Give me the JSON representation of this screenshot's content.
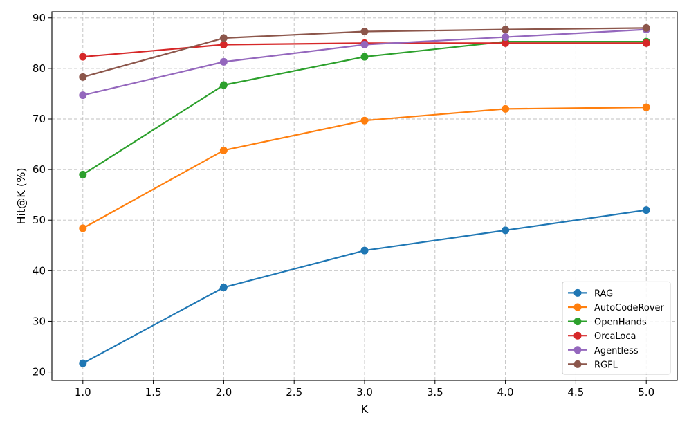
{
  "chart_data": {
    "type": "line",
    "title": "",
    "xlabel": "K",
    "ylabel": "Hit@K (%)",
    "x": [
      1.0,
      2.0,
      3.0,
      4.0,
      5.0
    ],
    "xlim": [
      0.78,
      5.22
    ],
    "ylim": [
      18.3,
      91.2
    ],
    "xticks": [
      1.0,
      1.5,
      2.0,
      2.5,
      3.0,
      3.5,
      4.0,
      4.5,
      5.0
    ],
    "xtick_labels": [
      "1.0",
      "1.5",
      "2.0",
      "2.5",
      "3.0",
      "3.5",
      "4.0",
      "4.5",
      "5.0"
    ],
    "yticks": [
      20,
      30,
      40,
      50,
      60,
      70,
      80,
      90
    ],
    "ytick_labels": [
      "20",
      "30",
      "40",
      "50",
      "60",
      "70",
      "80",
      "90"
    ],
    "grid": true,
    "legend_position": "lower-right",
    "series": [
      {
        "name": "RAG",
        "color": "#1f77b4",
        "values": [
          21.7,
          36.7,
          44.0,
          48.0,
          52.0
        ]
      },
      {
        "name": "AutoCodeRover",
        "color": "#ff7f0e",
        "values": [
          48.4,
          63.8,
          69.7,
          72.0,
          72.3
        ]
      },
      {
        "name": "OpenHands",
        "color": "#2ca02c",
        "values": [
          59.0,
          76.7,
          82.3,
          85.3,
          85.3
        ]
      },
      {
        "name": "OrcaLoca",
        "color": "#d62728",
        "values": [
          82.3,
          84.7,
          85.0,
          85.0,
          85.0
        ]
      },
      {
        "name": "Agentless",
        "color": "#9467bd",
        "values": [
          74.7,
          81.3,
          84.7,
          86.2,
          87.7
        ]
      },
      {
        "name": "RGFL",
        "color": "#8c564b",
        "values": [
          78.3,
          86.0,
          87.3,
          87.7,
          88.0
        ]
      }
    ]
  }
}
